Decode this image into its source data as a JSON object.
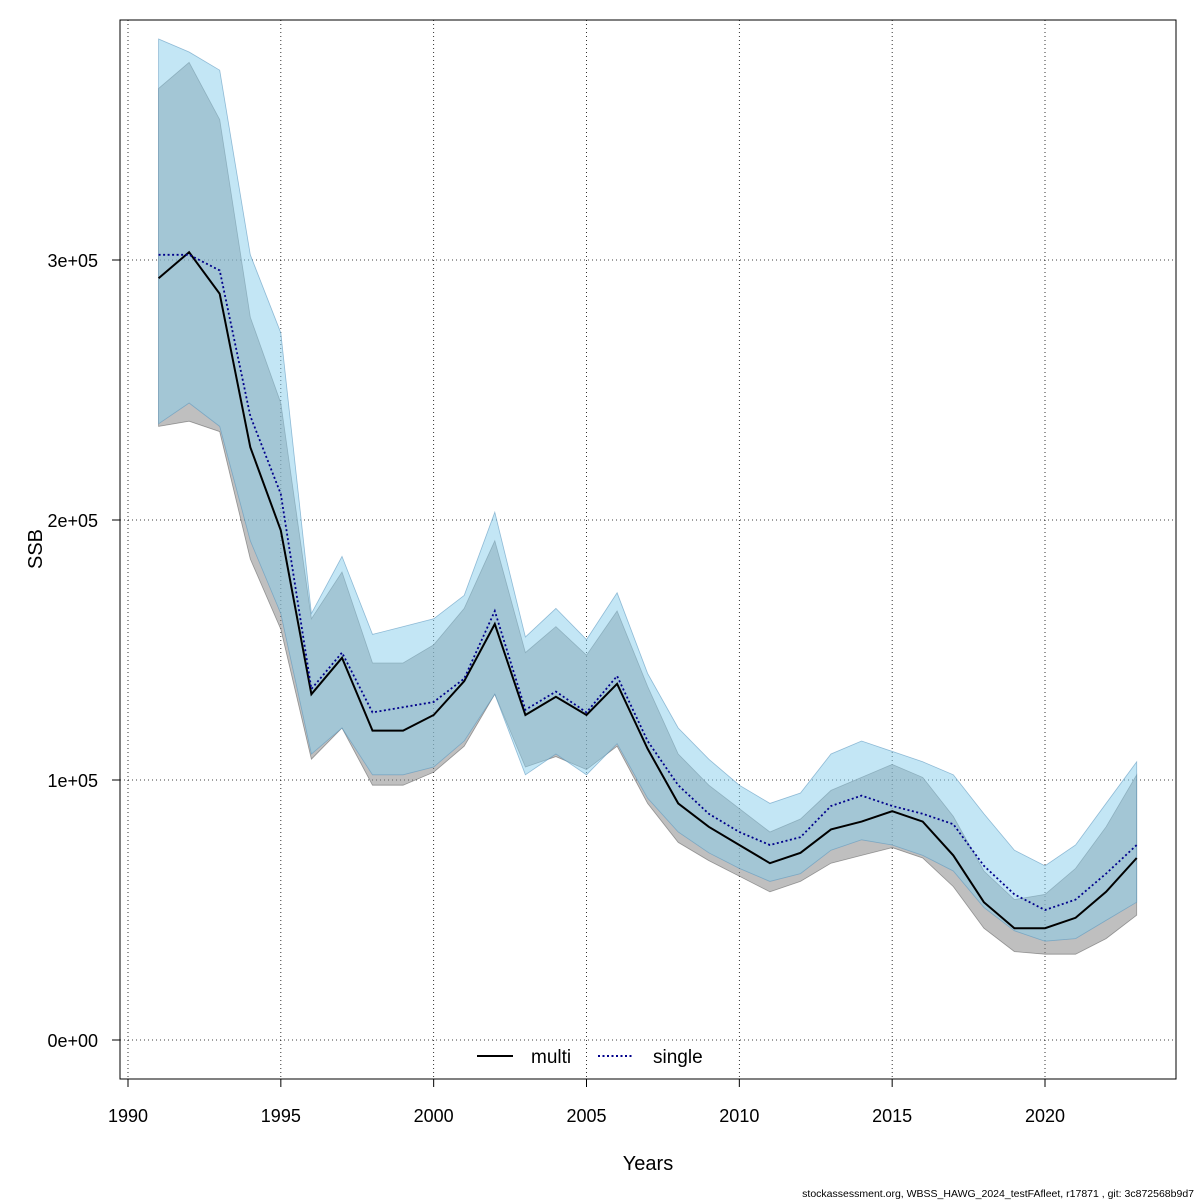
{
  "chart_data": {
    "type": "line",
    "xlabel": "Years",
    "ylabel": "SSB",
    "xlim": [
      1990,
      2023
    ],
    "ylim": [
      0,
      390000
    ],
    "x_ticks": [
      1990,
      1995,
      2000,
      2005,
      2010,
      2015,
      2020
    ],
    "x_tick_labels": [
      "1990",
      "1995",
      "2000",
      "2005",
      "2010",
      "2015",
      "2020"
    ],
    "y_ticks": [
      0,
      100000,
      200000,
      300000
    ],
    "y_tick_labels": [
      "0e+00",
      "1e+05",
      "2e+05",
      "3e+05"
    ],
    "grid": true,
    "legend_position": "bottom",
    "colors": {
      "multi_line": "#000000",
      "multi_band": "rgba(128,128,128,0.5)",
      "single_line": "#00008B",
      "single_band": "rgba(135,206,235,0.5)"
    },
    "x": [
      1991,
      1992,
      1993,
      1994,
      1995,
      1996,
      1997,
      1998,
      1999,
      2000,
      2001,
      2002,
      2003,
      2004,
      2005,
      2006,
      2007,
      2008,
      2009,
      2010,
      2011,
      2012,
      2013,
      2014,
      2015,
      2016,
      2017,
      2018,
      2019,
      2020,
      2021,
      2022,
      2023
    ],
    "series": [
      {
        "name": "multi",
        "style": "solid",
        "values": [
          293000,
          303000,
          287000,
          228000,
          196000,
          133000,
          147000,
          119000,
          119000,
          125000,
          138000,
          160000,
          125000,
          132000,
          125000,
          137000,
          112000,
          91000,
          82000,
          75000,
          68000,
          72000,
          81000,
          84000,
          88000,
          84000,
          71000,
          53000,
          43000,
          43000,
          47000,
          57000,
          70000
        ],
        "lower": [
          236000,
          238000,
          234000,
          185000,
          158000,
          108000,
          120000,
          98000,
          98000,
          103000,
          113000,
          133000,
          105000,
          109000,
          104000,
          113000,
          91000,
          76000,
          69000,
          63000,
          57000,
          61000,
          68000,
          71000,
          74000,
          70000,
          59000,
          43000,
          34000,
          33000,
          33000,
          39000,
          48000
        ],
        "upper": [
          366000,
          376000,
          354000,
          278000,
          245000,
          162000,
          180000,
          145000,
          145000,
          152000,
          166000,
          192000,
          149000,
          159000,
          148000,
          165000,
          136000,
          110000,
          98000,
          89000,
          80000,
          85000,
          96000,
          101000,
          106000,
          101000,
          86000,
          65000,
          54000,
          56000,
          66000,
          82000,
          102000
        ]
      },
      {
        "name": "single",
        "style": "dotted",
        "values": [
          302000,
          302000,
          296000,
          240000,
          210000,
          135000,
          149000,
          126000,
          128000,
          130000,
          139000,
          165000,
          127000,
          134000,
          126000,
          140000,
          115000,
          98000,
          87000,
          80000,
          75000,
          78000,
          90000,
          94000,
          90000,
          87000,
          83000,
          67000,
          56000,
          50000,
          54000,
          64000,
          75000
        ],
        "lower": [
          237000,
          245000,
          236000,
          192000,
          164000,
          110000,
          120000,
          102000,
          102000,
          105000,
          115000,
          133000,
          102000,
          110000,
          102000,
          114000,
          93000,
          80000,
          72000,
          66000,
          61000,
          64000,
          73000,
          77000,
          75000,
          71000,
          65000,
          51000,
          42000,
          38000,
          39000,
          46000,
          53000
        ],
        "upper": [
          385000,
          380000,
          373000,
          302000,
          272000,
          164000,
          186000,
          156000,
          159000,
          162000,
          171000,
          203000,
          155000,
          166000,
          154000,
          172000,
          141000,
          120000,
          108000,
          98000,
          91000,
          95000,
          110000,
          115000,
          111000,
          107000,
          102000,
          87000,
          73000,
          67000,
          75000,
          91000,
          107000
        ]
      }
    ]
  },
  "legend": {
    "multi_label": "multi",
    "single_label": "single"
  },
  "footer_text": "stockassessment.org, WBSS_HAWG_2024_testFAfleet, r17871 , git: 3c872568b9d7"
}
